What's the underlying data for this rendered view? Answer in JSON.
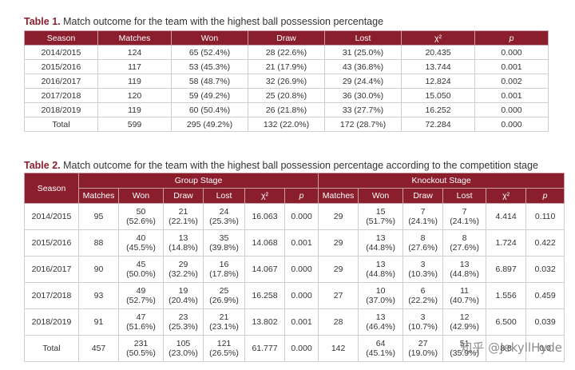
{
  "table1": {
    "label": "Table 1.",
    "caption": "Match outcome for the team with the highest ball possession percentage",
    "headers": [
      "Season",
      "Matches",
      "Won",
      "Draw",
      "Lost",
      "χ²",
      "p"
    ],
    "rows": [
      [
        "2014/2015",
        "124",
        "65 (52.4%)",
        "28 (22.6%)",
        "31 (25.0%)",
        "20.435",
        "0.000"
      ],
      [
        "2015/2016",
        "117",
        "53 (45.3%)",
        "21 (17.9%)",
        "43 (36.8%)",
        "13.744",
        "0.001"
      ],
      [
        "2016/2017",
        "119",
        "58 (48.7%)",
        "32 (26.9%)",
        "29 (24.4%)",
        "12.824",
        "0.002"
      ],
      [
        "2017/2018",
        "120",
        "59 (49.2%)",
        "25 (20.8%)",
        "36 (30.0%)",
        "15.050",
        "0.001"
      ],
      [
        "2018/2019",
        "119",
        "60 (50.4%)",
        "26 (21.8%)",
        "33 (27.7%)",
        "16.252",
        "0.000"
      ],
      [
        "Total",
        "599",
        "295 (49.2%)",
        "132 (22.0%)",
        "172 (28.7%)",
        "72.284",
        "0.000"
      ]
    ]
  },
  "table2": {
    "label": "Table 2.",
    "caption": "Match outcome for the team with the highest ball possession percentage according to the competition stage",
    "season_header": "Season",
    "group_header": "Group Stage",
    "knockout_header": "Knockout Stage",
    "subheaders": [
      "Matches",
      "Won",
      "Draw",
      "Lost",
      "χ²",
      "p",
      "Matches",
      "Won",
      "Draw",
      "Lost",
      "χ²",
      "p"
    ],
    "rows": [
      {
        "season": "2014/2015",
        "cells": [
          [
            "95"
          ],
          [
            "50",
            "(52.6%)"
          ],
          [
            "21",
            "(22.1%)"
          ],
          [
            "24",
            "(25.3%)"
          ],
          [
            "16.063"
          ],
          [
            "0.000"
          ],
          [
            "29"
          ],
          [
            "15",
            "(51.7%)"
          ],
          [
            "7",
            "(24.1%)"
          ],
          [
            "7",
            "(24.1%)"
          ],
          [
            "4.414"
          ],
          [
            "0.110"
          ]
        ]
      },
      {
        "season": "2015/2016",
        "cells": [
          [
            "88"
          ],
          [
            "40",
            "(45.5%)"
          ],
          [
            "13",
            "(14.8%)"
          ],
          [
            "35",
            "(39.8%)"
          ],
          [
            "14.068"
          ],
          [
            "0.001"
          ],
          [
            "29"
          ],
          [
            "13",
            "(44.8%)"
          ],
          [
            "8",
            "(27.6%)"
          ],
          [
            "8",
            "(27.6%)"
          ],
          [
            "1.724"
          ],
          [
            "0.422"
          ]
        ]
      },
      {
        "season": "2016/2017",
        "cells": [
          [
            "90"
          ],
          [
            "45",
            "(50.0%)"
          ],
          [
            "29",
            "(32.2%)"
          ],
          [
            "16",
            "(17.8%)"
          ],
          [
            "14.067"
          ],
          [
            "0.000"
          ],
          [
            "29"
          ],
          [
            "13",
            "(44.8%)"
          ],
          [
            "3",
            "(10.3%)"
          ],
          [
            "13",
            "(44.8%)"
          ],
          [
            "6.897"
          ],
          [
            "0.032"
          ]
        ]
      },
      {
        "season": "2017/2018",
        "cells": [
          [
            "93"
          ],
          [
            "49",
            "(52.7%)"
          ],
          [
            "19",
            "(20.4%)"
          ],
          [
            "25",
            "(26.9%)"
          ],
          [
            "16.258"
          ],
          [
            "0.000"
          ],
          [
            "27"
          ],
          [
            "10",
            "(37.0%)"
          ],
          [
            "6",
            "(22.2%)"
          ],
          [
            "11",
            "(40.7%)"
          ],
          [
            "1.556"
          ],
          [
            "0.459"
          ]
        ]
      },
      {
        "season": "2018/2019",
        "cells": [
          [
            "91"
          ],
          [
            "47",
            "(51.6%)"
          ],
          [
            "23",
            "(25.3%)"
          ],
          [
            "21",
            "(23.1%)"
          ],
          [
            "13.802"
          ],
          [
            "0.001"
          ],
          [
            "28"
          ],
          [
            "13",
            "(46.4%)"
          ],
          [
            "3",
            "(10.7%)"
          ],
          [
            "12",
            "(42.9%)"
          ],
          [
            "6.500"
          ],
          [
            "0.039"
          ]
        ]
      },
      {
        "season": "Total",
        "cells": [
          [
            "457"
          ],
          [
            "231",
            "(50.5%)"
          ],
          [
            "105",
            "(23.0%)"
          ],
          [
            "121",
            "(26.5%)"
          ],
          [
            "61.777"
          ],
          [
            "0.000"
          ],
          [
            "142"
          ],
          [
            "64",
            "(45.1%)"
          ],
          [
            "27",
            "(19.0%)"
          ],
          [
            "51",
            "(35.9%)"
          ],
          [
            "8.8"
          ],
          [
            "0.0"
          ]
        ]
      }
    ]
  },
  "watermark": "知乎 @JekyllHyde"
}
